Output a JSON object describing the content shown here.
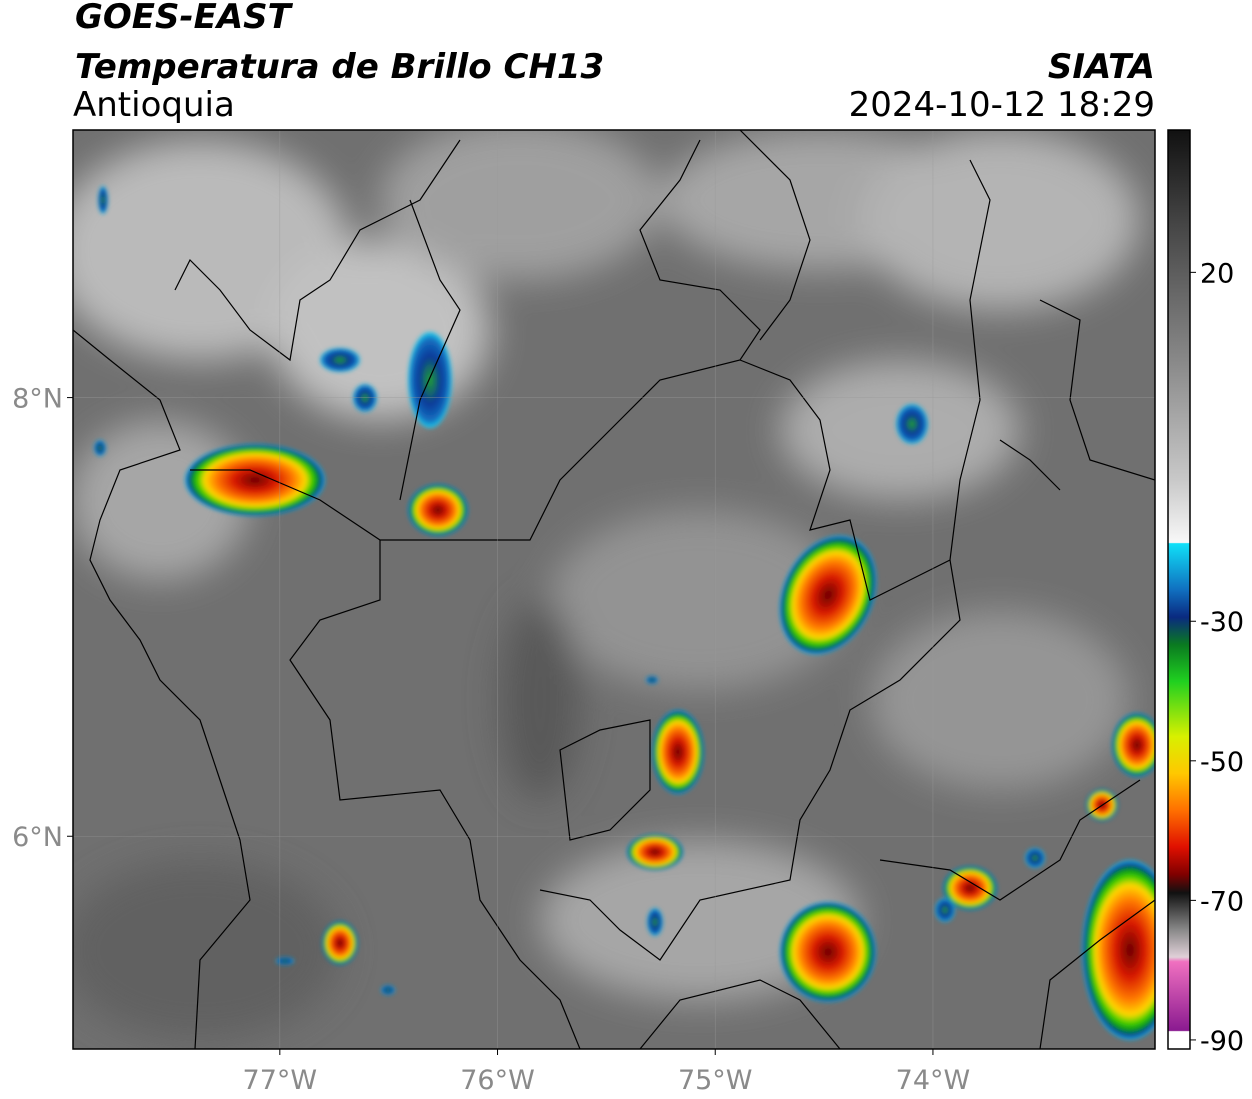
{
  "header": {
    "title": "GOES-EAST",
    "subtitle": "Temperatura de Brillo CH13",
    "region": "Antioquia",
    "source": "SIATA",
    "timestamp": "2024-10-12 18:29"
  },
  "map": {
    "xlim": [
      -77.95,
      -72.98
    ],
    "ylim": [
      5.03,
      9.22
    ],
    "xticks": [
      {
        "value": -77,
        "label": "77°W"
      },
      {
        "value": -76,
        "label": "76°W"
      },
      {
        "value": -75,
        "label": "75°W"
      },
      {
        "value": -74,
        "label": "74°W"
      }
    ],
    "yticks": [
      {
        "value": 8,
        "label": "8°N"
      },
      {
        "value": 6,
        "label": "6°N"
      }
    ],
    "grid": true
  },
  "colorbar": {
    "lim": [
      -91.3,
      40.4
    ],
    "ticks": [
      20,
      -30,
      -50,
      -70,
      -90
    ]
  }
}
